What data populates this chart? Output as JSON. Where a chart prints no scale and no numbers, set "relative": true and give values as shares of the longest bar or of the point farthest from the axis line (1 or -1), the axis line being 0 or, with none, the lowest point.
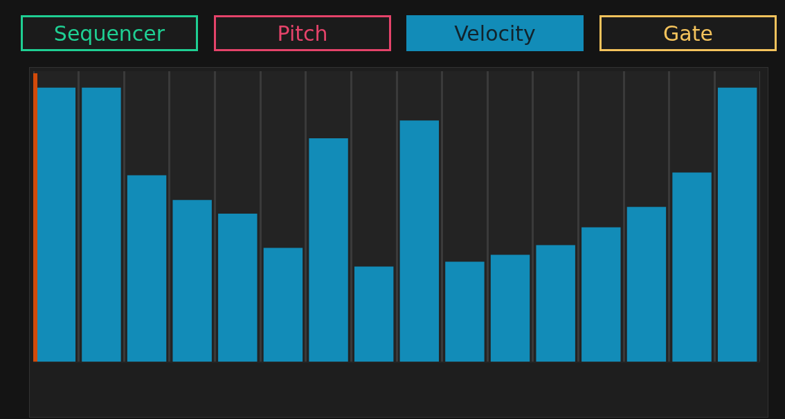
{
  "chart_data": {
    "type": "bar",
    "relative": true,
    "categories": [
      null,
      null,
      null,
      null,
      null,
      null,
      null,
      null,
      null,
      null,
      null,
      null,
      null,
      null,
      null,
      null
    ],
    "values": [
      1,
      1,
      0.68,
      0.59,
      0.54,
      0.415,
      0.815,
      0.347,
      0.88,
      0.365,
      0.39,
      0.425,
      0.49,
      0.565,
      0.69,
      1
    ],
    "color": "#128cb8",
    "grid": "x",
    "legend": false,
    "annotations": [
      "Sequencer",
      "Pitch",
      "Velocity",
      "Gate"
    ]
  }
}
